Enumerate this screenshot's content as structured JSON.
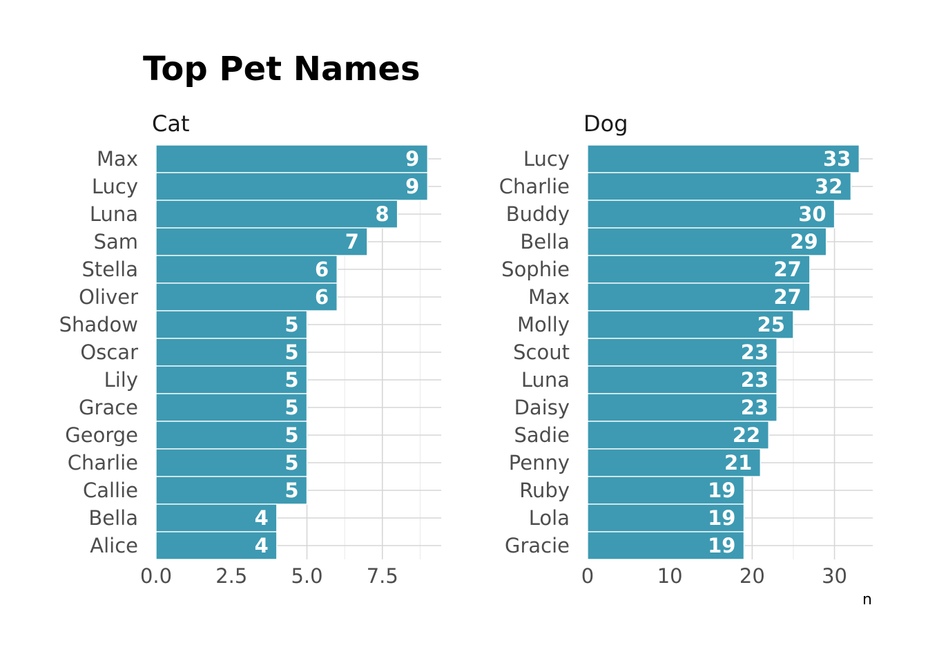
{
  "title": "Top Pet Names",
  "x_axis_label": "n",
  "bar_color": "#3d9ab2",
  "chart_data": [
    {
      "type": "bar",
      "orientation": "horizontal",
      "facet": "Cat",
      "categories": [
        "Max",
        "Lucy",
        "Luna",
        "Sam",
        "Stella",
        "Oliver",
        "Shadow",
        "Oscar",
        "Lily",
        "Grace",
        "George",
        "Charlie",
        "Callie",
        "Bella",
        "Alice"
      ],
      "values": [
        9,
        9,
        8,
        7,
        6,
        6,
        5,
        5,
        5,
        5,
        5,
        5,
        5,
        4,
        4
      ],
      "xlim": [
        0,
        9.45
      ],
      "major_ticks": [
        0,
        2.5,
        5,
        7.5
      ],
      "tick_labels": [
        "0.0",
        "2.5",
        "5.0",
        "7.5"
      ],
      "minor_ticks": [
        1.25,
        3.75,
        6.25,
        8.75
      ],
      "grid": true
    },
    {
      "type": "bar",
      "orientation": "horizontal",
      "facet": "Dog",
      "categories": [
        "Lucy",
        "Charlie",
        "Buddy",
        "Bella",
        "Sophie",
        "Max",
        "Molly",
        "Scout",
        "Luna",
        "Daisy",
        "Sadie",
        "Penny",
        "Ruby",
        "Lola",
        "Gracie"
      ],
      "values": [
        33,
        32,
        30,
        29,
        27,
        27,
        25,
        23,
        23,
        23,
        22,
        21,
        19,
        19,
        19
      ],
      "xlim": [
        0,
        34.65
      ],
      "major_ticks": [
        0,
        10,
        20,
        30
      ],
      "tick_labels": [
        "0",
        "10",
        "20",
        "30"
      ],
      "minor_ticks": [
        5,
        15,
        25
      ],
      "grid": true
    }
  ]
}
